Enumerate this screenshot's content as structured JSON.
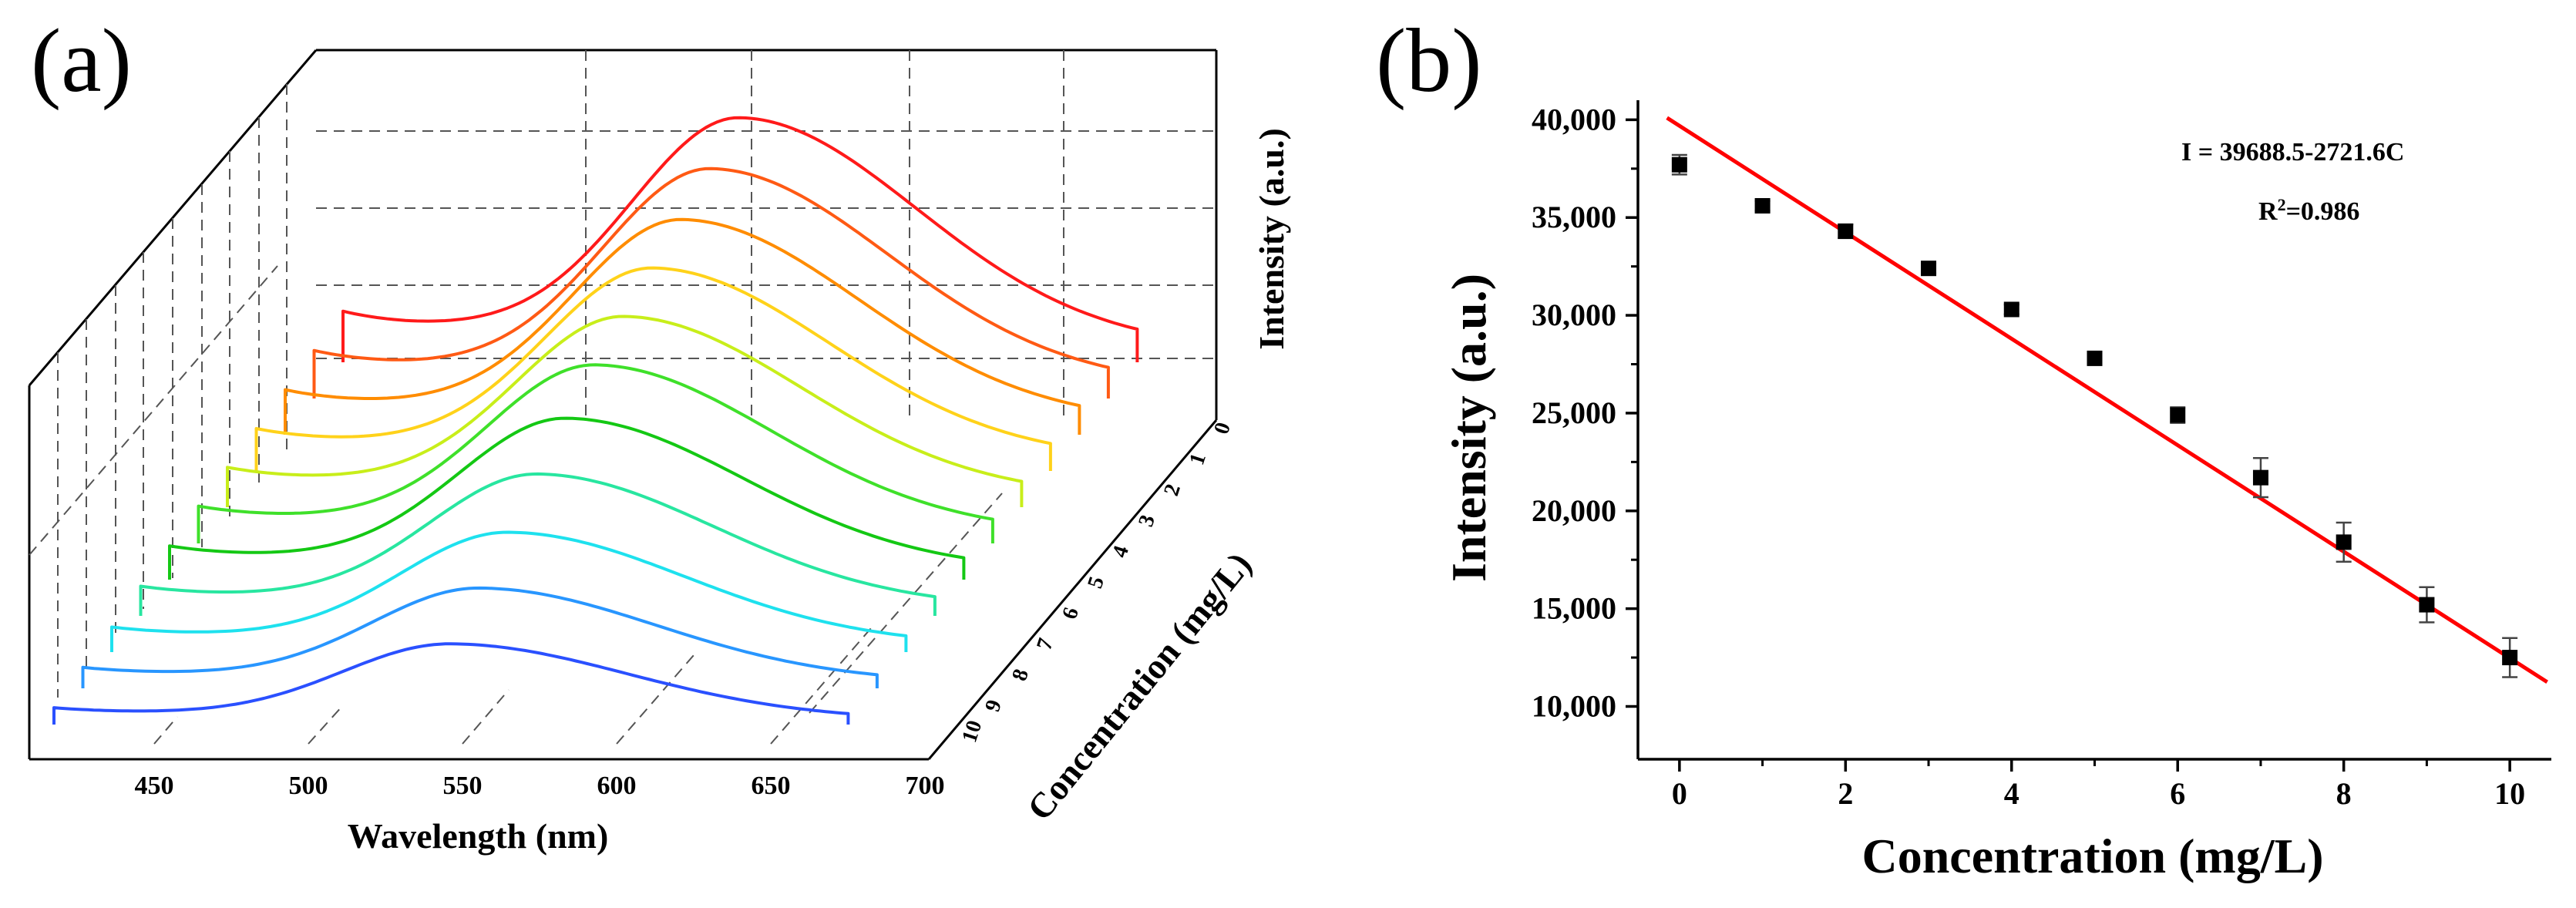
{
  "panels": {
    "a": {
      "label": "(a)"
    },
    "b": {
      "label": "(b)"
    }
  },
  "chart_data": [
    {
      "type": "line",
      "subtype": "waterfall-3d",
      "panel": "(a)",
      "xlabel": "Wavelength (nm)",
      "ylabel": "Concentration (mg/L)",
      "zlabel": "Intensity (a.u.)",
      "xlim": [
        420,
        700
      ],
      "x_ticks": [
        "450",
        "500",
        "550",
        "600",
        "650",
        "700"
      ],
      "y_ticks": [
        "0",
        "1",
        "2",
        "3",
        "4",
        "5",
        "6",
        "7",
        "8",
        "9",
        "10"
      ],
      "series": [
        {
          "name": "0",
          "color": "#ff1a1a",
          "peak_nm": 560,
          "peak_rel": 1.0
        },
        {
          "name": "1",
          "color": "#ff5a14",
          "peak_nm": 560,
          "peak_rel": 0.94
        },
        {
          "name": "2",
          "color": "#ff8c00",
          "peak_nm": 560,
          "peak_rel": 0.88
        },
        {
          "name": "3",
          "color": "#ffd21a",
          "peak_nm": 560,
          "peak_rel": 0.83
        },
        {
          "name": "4",
          "color": "#c8ee1a",
          "peak_nm": 560,
          "peak_rel": 0.78
        },
        {
          "name": "5",
          "color": "#3fe02a",
          "peak_nm": 560,
          "peak_rel": 0.73
        },
        {
          "name": "6",
          "color": "#14c814",
          "peak_nm": 560,
          "peak_rel": 0.66
        },
        {
          "name": "7",
          "color": "#28e6a0",
          "peak_nm": 560,
          "peak_rel": 0.58
        },
        {
          "name": "8",
          "color": "#1ee1ee",
          "peak_nm": 560,
          "peak_rel": 0.49
        },
        {
          "name": "9",
          "color": "#2896ff",
          "peak_nm": 560,
          "peak_rel": 0.41
        },
        {
          "name": "10",
          "color": "#2a50ff",
          "peak_nm": 560,
          "peak_rel": 0.33
        }
      ]
    },
    {
      "type": "scatter",
      "panel": "(b)",
      "xlabel": "Concentration (mg/L)",
      "ylabel": "Intensity (a.u.)",
      "xlim": [
        -0.5,
        10.5
      ],
      "ylim": [
        7300,
        41000
      ],
      "x_ticks": [
        0,
        2,
        4,
        6,
        8,
        10
      ],
      "y_ticks": [
        10000,
        15000,
        20000,
        25000,
        30000,
        35000,
        40000
      ],
      "y_tick_labels": [
        "10,000",
        "15,000",
        "20,000",
        "25,000",
        "30,000",
        "35,000",
        "40,000"
      ],
      "x_tick_labels": [
        "0",
        "2",
        "4",
        "6",
        "8",
        "10"
      ],
      "x": [
        0,
        1,
        2,
        3,
        4,
        5,
        6,
        7,
        8,
        9,
        10
      ],
      "y": [
        37700,
        35600,
        34300,
        32400,
        30300,
        27800,
        24900,
        21700,
        18400,
        15200,
        12500
      ],
      "yerr": [
        500,
        250,
        350,
        250,
        250,
        250,
        400,
        1000,
        1000,
        900,
        1000
      ],
      "fit": {
        "intercept": 39688.5,
        "slope": -2721.6,
        "x_range": [
          -0.15,
          10.45
        ],
        "color": "#ff0000"
      },
      "equation": "I = 39688.5-2721.6C",
      "r2_prefix": "R",
      "r2_sup": "2",
      "r2_suffix": "=0.986"
    }
  ]
}
